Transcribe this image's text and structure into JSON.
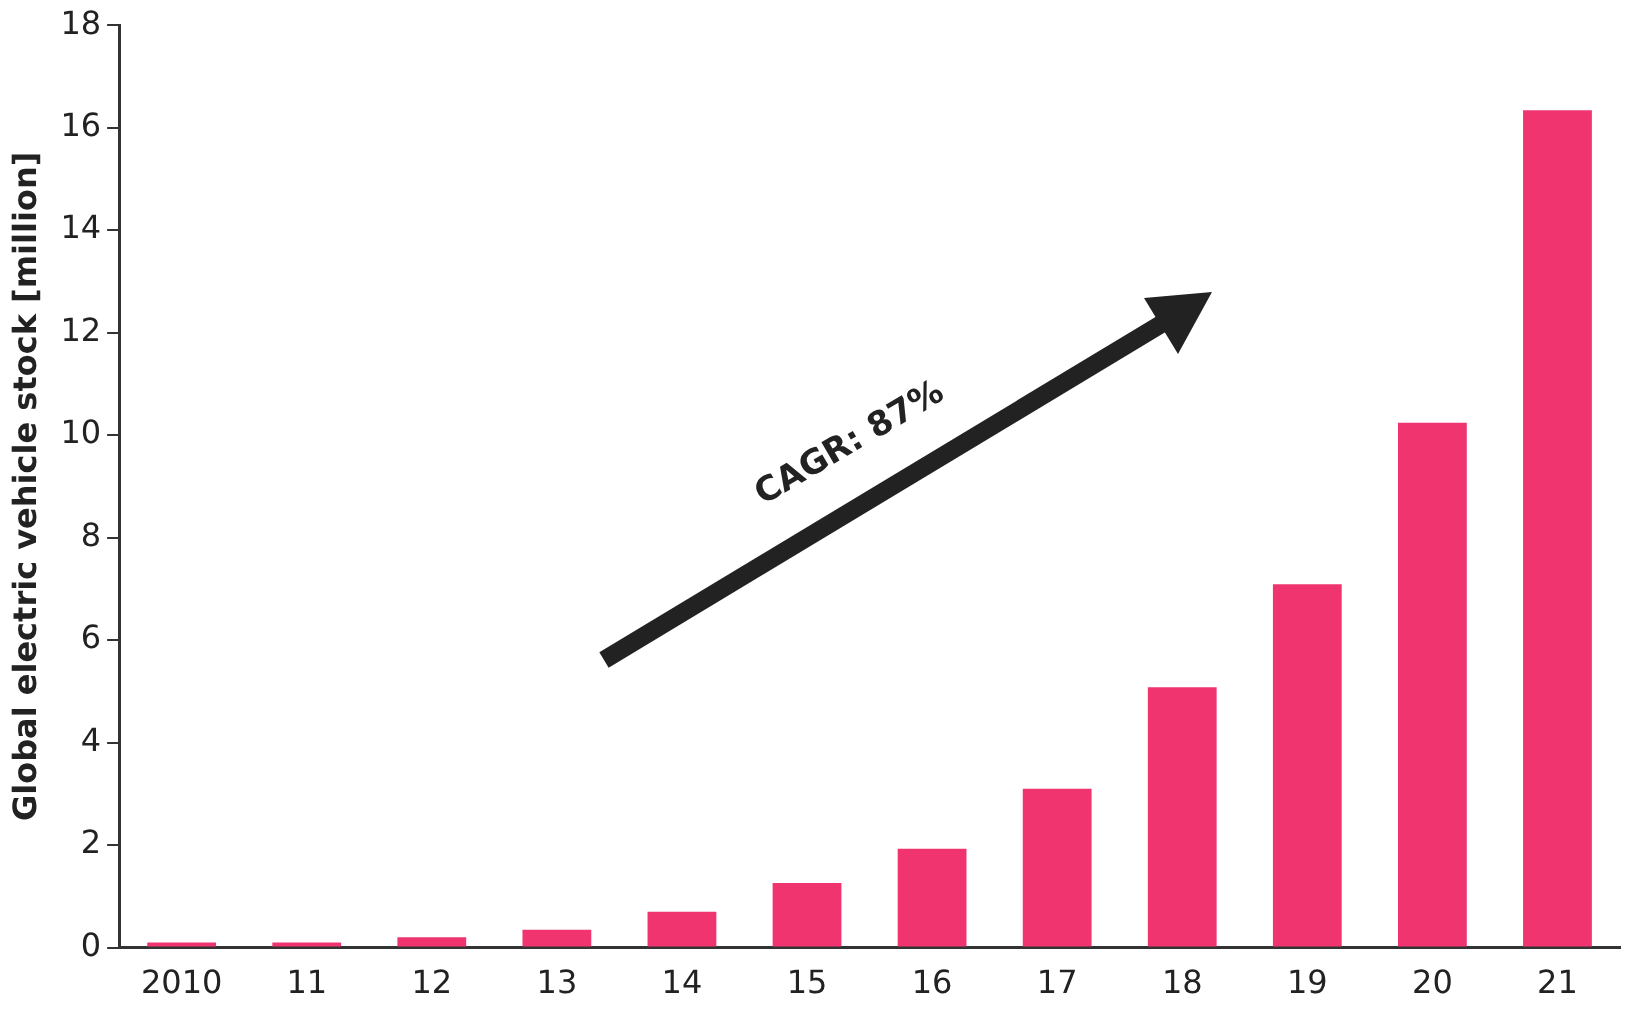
{
  "chart_data": {
    "type": "bar",
    "ylabel": "Global electric vehicle stock [million]",
    "categories": [
      "2010",
      "11",
      "12",
      "13",
      "14",
      "15",
      "16",
      "17",
      "18",
      "19",
      "20",
      "21"
    ],
    "values": [
      0.1,
      0.1,
      0.2,
      0.35,
      0.7,
      1.26,
      1.93,
      3.1,
      5.08,
      7.09,
      10.24,
      16.34
    ],
    "color": "#ef3470",
    "ylim": [
      0,
      18
    ],
    "yticks": [
      0,
      2,
      4,
      6,
      8,
      10,
      12,
      14,
      16,
      18
    ],
    "grid": false,
    "legend": false,
    "annotations": [
      "CAGR: 87%"
    ]
  }
}
